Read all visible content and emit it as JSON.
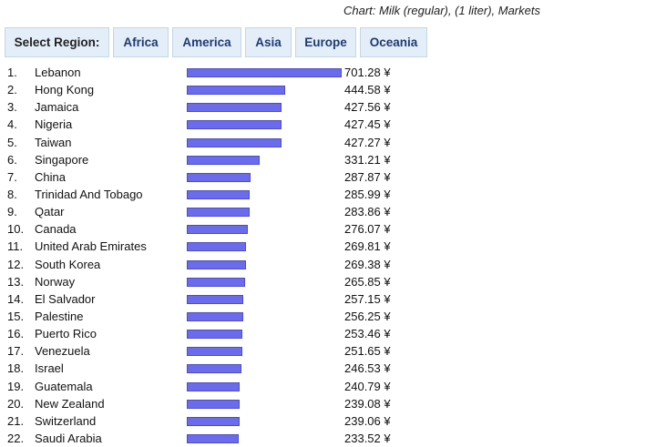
{
  "caption": "Chart: Milk (regular), (1 liter), Markets",
  "region_selector": {
    "label": "Select Region:",
    "buttons": [
      "Africa",
      "America",
      "Asia",
      "Europe",
      "Oceania"
    ]
  },
  "colors": {
    "bar": "#6b6bee",
    "button_bg": "#e4eef8",
    "button_text": "#1d3b73"
  },
  "currency_symbol": "¥",
  "chart_data": {
    "type": "bar",
    "orientation": "horizontal",
    "title": "Chart: Milk (regular), (1 liter), Markets",
    "unit": "¥",
    "xlim": [
      0,
      701.28
    ],
    "rows": [
      {
        "rank": "1.",
        "country": "Lebanon",
        "value": 701.28,
        "label": "701.28 ¥"
      },
      {
        "rank": "2.",
        "country": "Hong Kong",
        "value": 444.58,
        "label": "444.58 ¥"
      },
      {
        "rank": "3.",
        "country": "Jamaica",
        "value": 427.56,
        "label": "427.56 ¥"
      },
      {
        "rank": "4.",
        "country": "Nigeria",
        "value": 427.45,
        "label": "427.45 ¥"
      },
      {
        "rank": "5.",
        "country": "Taiwan",
        "value": 427.27,
        "label": "427.27 ¥"
      },
      {
        "rank": "6.",
        "country": "Singapore",
        "value": 331.21,
        "label": "331.21 ¥"
      },
      {
        "rank": "7.",
        "country": "China",
        "value": 287.87,
        "label": "287.87 ¥"
      },
      {
        "rank": "8.",
        "country": "Trinidad And Tobago",
        "value": 285.99,
        "label": "285.99 ¥"
      },
      {
        "rank": "9.",
        "country": "Qatar",
        "value": 283.86,
        "label": "283.86 ¥"
      },
      {
        "rank": "10.",
        "country": "Canada",
        "value": 276.07,
        "label": "276.07 ¥"
      },
      {
        "rank": "11.",
        "country": "United Arab Emirates",
        "value": 269.81,
        "label": "269.81 ¥"
      },
      {
        "rank": "12.",
        "country": "South Korea",
        "value": 269.38,
        "label": "269.38 ¥"
      },
      {
        "rank": "13.",
        "country": "Norway",
        "value": 265.85,
        "label": "265.85 ¥"
      },
      {
        "rank": "14.",
        "country": "El Salvador",
        "value": 257.15,
        "label": "257.15 ¥"
      },
      {
        "rank": "15.",
        "country": "Palestine",
        "value": 256.25,
        "label": "256.25 ¥"
      },
      {
        "rank": "16.",
        "country": "Puerto Rico",
        "value": 253.46,
        "label": "253.46 ¥"
      },
      {
        "rank": "17.",
        "country": "Venezuela",
        "value": 251.65,
        "label": "251.65 ¥"
      },
      {
        "rank": "18.",
        "country": "Israel",
        "value": 246.53,
        "label": "246.53 ¥"
      },
      {
        "rank": "19.",
        "country": "Guatemala",
        "value": 240.79,
        "label": "240.79 ¥"
      },
      {
        "rank": "20.",
        "country": "New Zealand",
        "value": 239.08,
        "label": "239.08 ¥"
      },
      {
        "rank": "21.",
        "country": "Switzerland",
        "value": 239.06,
        "label": "239.06 ¥"
      },
      {
        "rank": "22.",
        "country": "Saudi Arabia",
        "value": 233.52,
        "label": "233.52 ¥"
      }
    ]
  }
}
